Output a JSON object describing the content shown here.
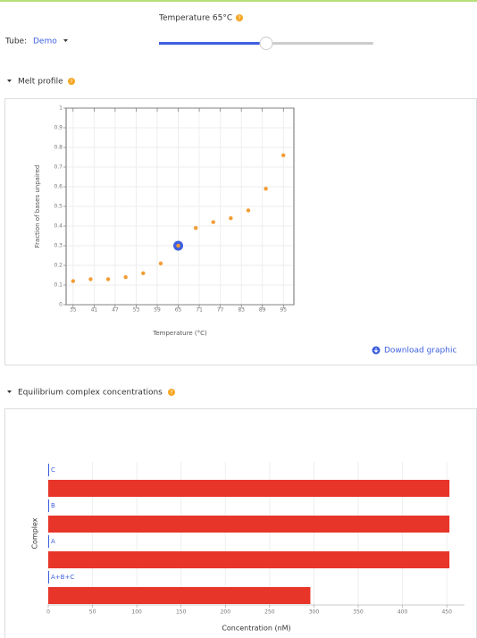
{
  "header": {
    "temperature_label": "Temperature 65°C",
    "help": "?",
    "tube_label": "Tube:",
    "tube_value": "Demo"
  },
  "slider": {
    "value": 65,
    "min": 35,
    "max": 95
  },
  "sections": [
    {
      "title": "Melt profile"
    },
    {
      "title": "Equilibrium complex concentrations"
    }
  ],
  "download": "Download graphic",
  "chart_data": [
    {
      "type": "scatter",
      "x_label": "Temperature (°C)",
      "y_label": "Fraction of bases unpaired",
      "x": [
        35,
        40,
        45,
        50,
        55,
        60,
        65,
        70,
        75,
        80,
        85,
        90,
        95
      ],
      "values": [
        0.12,
        0.13,
        0.13,
        0.14,
        0.16,
        0.21,
        0.3,
        0.39,
        0.42,
        0.44,
        0.48,
        0.59,
        0.76
      ],
      "color": "#f39c34",
      "highlight_color": "#3d5fe0",
      "xlim": [
        33,
        98
      ],
      "ylim": [
        0,
        1
      ],
      "xticks": [
        35,
        41,
        47,
        53,
        59,
        65,
        71,
        77,
        83,
        89,
        95
      ],
      "yticks": [
        0,
        0.1,
        0.2,
        0.3,
        0.4,
        0.5,
        0.6,
        0.7,
        0.8,
        0.9,
        1
      ],
      "grid": true
    },
    {
      "type": "hbar",
      "x_label": "Concentration (nM)",
      "y_label": "Complex",
      "categories": [
        "C",
        "B",
        "A",
        "A+B+C"
      ],
      "values": [
        453,
        453,
        453,
        296
      ],
      "color": "#e8352a",
      "xlim": [
        0,
        470
      ],
      "xticks": [
        0,
        50,
        100,
        150,
        200,
        250,
        300,
        350,
        400,
        450
      ],
      "grid": true
    }
  ]
}
